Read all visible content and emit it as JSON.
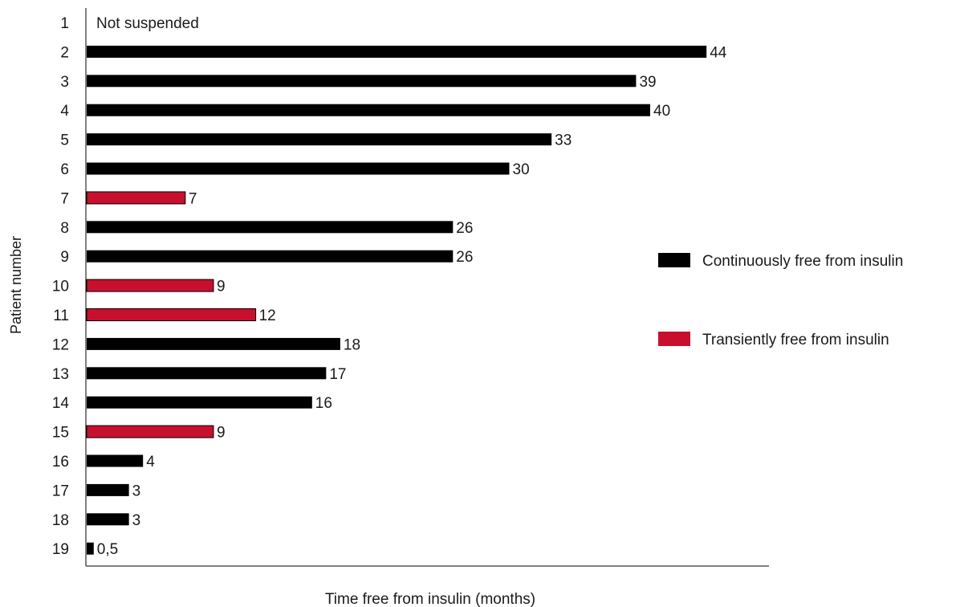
{
  "chart_data": {
    "type": "bar",
    "orientation": "horizontal",
    "title": "",
    "xlabel": "Time free from insulin (months)",
    "ylabel": "Patient number",
    "xlim": [
      0,
      48
    ],
    "grid": false,
    "legend_position": "right",
    "categories": [
      "1",
      "2",
      "3",
      "4",
      "5",
      "6",
      "7",
      "8",
      "9",
      "10",
      "11",
      "12",
      "13",
      "14",
      "15",
      "16",
      "17",
      "18",
      "19"
    ],
    "values": [
      null,
      44,
      39,
      40,
      33,
      30,
      7,
      26,
      26,
      9,
      12,
      18,
      17,
      16,
      9,
      4,
      3,
      3,
      0.5
    ],
    "value_labels": [
      "Not suspended",
      "44",
      "39",
      "40",
      "33",
      "30",
      "7",
      "26",
      "26",
      "9",
      "12",
      "18",
      "17",
      "16",
      "9",
      "4",
      "3",
      "3",
      "0,5"
    ],
    "groups": [
      "none",
      "continuous",
      "continuous",
      "continuous",
      "continuous",
      "continuous",
      "transient",
      "continuous",
      "continuous",
      "transient",
      "transient",
      "continuous",
      "continuous",
      "continuous",
      "transient",
      "continuous",
      "continuous",
      "continuous",
      "continuous"
    ],
    "series": [
      {
        "key": "continuous",
        "name": "Continuously free from insulin",
        "color": "#000000"
      },
      {
        "key": "transient",
        "name": "Transiently free from insulin",
        "color": "#c8102e"
      }
    ]
  }
}
